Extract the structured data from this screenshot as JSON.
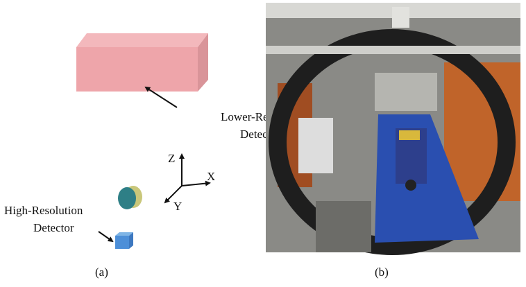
{
  "panels": [
    {
      "caption": "(a)",
      "lower_detector_label": [
        "Lower-Resolution",
        "Detector"
      ],
      "high_detector_label": [
        "High-Resolution",
        "Detector"
      ],
      "axes": {
        "z": "Z",
        "x": "X",
        "y": "Y"
      }
    },
    {
      "caption": "(b)"
    }
  ]
}
